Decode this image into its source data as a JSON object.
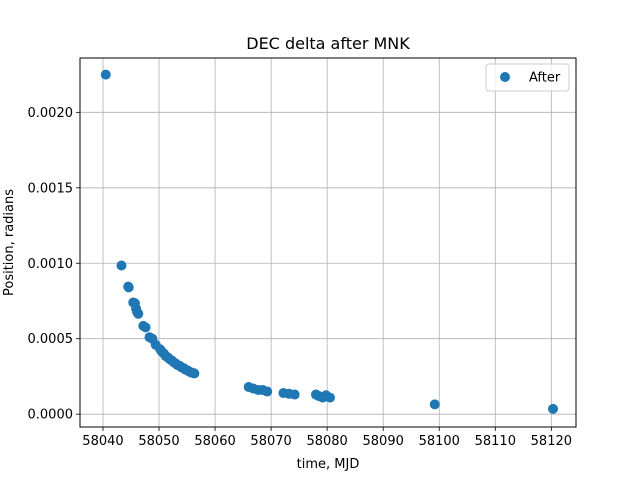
{
  "chart_data": {
    "type": "scatter",
    "title": "DEC delta after MNK",
    "xlabel": "time, MJD",
    "ylabel": "Position, radians",
    "xlim": [
      58035.9,
      58124.4
    ],
    "ylim": [
      -8.5e-05,
      0.00236
    ],
    "xticks": [
      "58040",
      "58050",
      "58060",
      "58070",
      "58080",
      "58090",
      "58100",
      "58110",
      "58120"
    ],
    "yticks": [
      "0.0000",
      "0.0005",
      "0.0010",
      "0.0015",
      "0.0020"
    ],
    "grid": true,
    "legend_position": "top-right",
    "series": [
      {
        "name": "After",
        "color": "#1f77b4",
        "x": [
          58040.5,
          58043.3,
          58044.5,
          58044.6,
          58045.4,
          58045.7,
          58045.9,
          58046.1,
          58046.3,
          58047.2,
          58047.6,
          58048.3,
          58048.8,
          58049.4,
          58050.2,
          58050.5,
          58050.9,
          58051.2,
          58051.6,
          58051.9,
          58052.3,
          58052.6,
          58053.0,
          58053.3,
          58053.7,
          58054.0,
          58054.4,
          58054.7,
          58055.1,
          58055.5,
          58055.9,
          58056.3,
          58066.0,
          58066.8,
          58067.7,
          58068.5,
          58069.3,
          58072.2,
          58073.2,
          58074.2,
          58078.0,
          58078.5,
          58079.2,
          58079.8,
          58080.5,
          58099.2,
          58120.3
        ],
        "y": [
          0.00225,
          0.000985,
          0.000845,
          0.00084,
          0.00074,
          0.000735,
          0.0007,
          0.000675,
          0.000665,
          0.000585,
          0.000575,
          0.00051,
          0.0005,
          0.00046,
          0.00043,
          0.000415,
          0.0004,
          0.000385,
          0.000375,
          0.000365,
          0.000355,
          0.000345,
          0.000335,
          0.000325,
          0.00032,
          0.00031,
          0.000305,
          0.000295,
          0.00029,
          0.00028,
          0.000275,
          0.00027,
          0.00018,
          0.00017,
          0.00016,
          0.00016,
          0.00015,
          0.00014,
          0.000135,
          0.00013,
          0.00013,
          0.00012,
          0.00011,
          0.000125,
          0.00011,
          6.5e-05,
          3.5e-05
        ]
      }
    ]
  }
}
